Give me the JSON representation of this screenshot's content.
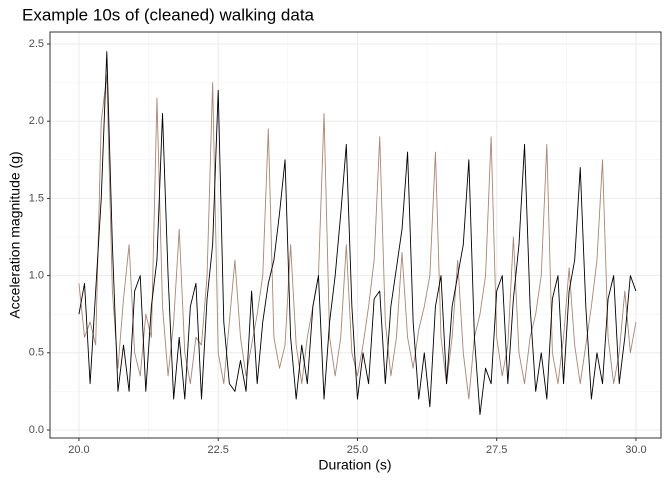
{
  "chart_data": {
    "type": "line",
    "title": "Example 10s of (cleaned) walking data",
    "x_label": "Duration (s)",
    "y_label": "Acceleration magnitude (g)",
    "x": [
      20.0,
      20.1,
      20.2,
      20.3,
      20.4,
      20.5,
      20.6,
      20.7,
      20.8,
      20.9,
      21.0,
      21.1,
      21.2,
      21.3,
      21.4,
      21.5,
      21.6,
      21.7,
      21.8,
      21.9,
      22.0,
      22.1,
      22.2,
      22.3,
      22.4,
      22.5,
      22.6,
      22.7,
      22.8,
      22.9,
      23.0,
      23.1,
      23.2,
      23.3,
      23.4,
      23.5,
      23.6,
      23.7,
      23.8,
      23.9,
      24.0,
      24.1,
      24.2,
      24.3,
      24.4,
      24.5,
      24.6,
      24.7,
      24.8,
      24.9,
      25.0,
      25.1,
      25.2,
      25.3,
      25.4,
      25.5,
      25.6,
      25.7,
      25.8,
      25.9,
      26.0,
      26.1,
      26.2,
      26.3,
      26.4,
      26.5,
      26.6,
      26.7,
      26.8,
      26.9,
      27.0,
      27.1,
      27.2,
      27.3,
      27.4,
      27.5,
      27.6,
      27.7,
      27.8,
      27.9,
      28.0,
      28.1,
      28.2,
      28.3,
      28.4,
      28.5,
      28.6,
      28.7,
      28.8,
      28.9,
      29.0,
      29.1,
      29.2,
      29.3,
      29.4,
      29.5,
      29.6,
      29.7,
      29.8,
      29.9,
      30.0
    ],
    "series": [
      {
        "color": "#a98676",
        "values": [
          0.95,
          0.6,
          0.7,
          0.55,
          2.0,
          2.3,
          0.9,
          0.4,
          0.85,
          1.2,
          0.5,
          0.35,
          0.75,
          0.6,
          2.15,
          0.8,
          0.35,
          0.7,
          1.3,
          0.5,
          0.3,
          0.6,
          0.55,
          1.0,
          2.25,
          0.5,
          0.3,
          0.7,
          1.1,
          0.6,
          0.35,
          0.55,
          0.75,
          1.0,
          1.95,
          0.6,
          0.4,
          0.55,
          1.2,
          0.55,
          0.3,
          0.6,
          0.8,
          1.0,
          2.05,
          0.6,
          0.35,
          0.6,
          1.2,
          0.5,
          0.35,
          0.55,
          0.8,
          1.1,
          1.9,
          0.7,
          0.35,
          0.6,
          1.15,
          0.6,
          0.4,
          0.65,
          0.8,
          1.0,
          1.8,
          0.6,
          0.3,
          0.6,
          1.1,
          0.5,
          0.2,
          0.6,
          0.75,
          1.0,
          1.9,
          0.6,
          0.35,
          0.55,
          1.25,
          0.5,
          0.3,
          0.6,
          0.75,
          1.0,
          1.85,
          0.5,
          0.3,
          0.6,
          1.05,
          0.55,
          0.3,
          0.55,
          0.8,
          1.1,
          1.75,
          0.6,
          0.3,
          0.5,
          0.9,
          0.5,
          0.7
        ]
      },
      {
        "color": "#000000",
        "values": [
          0.75,
          0.95,
          0.3,
          0.9,
          1.5,
          2.45,
          1.2,
          0.25,
          0.55,
          0.25,
          0.9,
          1.0,
          0.25,
          0.8,
          1.1,
          2.05,
          1.0,
          0.2,
          0.6,
          0.2,
          0.8,
          0.95,
          0.2,
          0.85,
          1.2,
          2.2,
          0.7,
          0.3,
          0.25,
          0.45,
          0.25,
          0.9,
          0.3,
          0.7,
          0.95,
          1.1,
          1.4,
          1.75,
          0.6,
          0.2,
          0.55,
          0.3,
          0.8,
          1.0,
          0.2,
          0.7,
          1.0,
          1.4,
          1.85,
          0.8,
          0.2,
          0.5,
          0.3,
          0.85,
          0.9,
          0.3,
          0.8,
          1.05,
          1.3,
          1.8,
          0.7,
          0.2,
          0.5,
          0.15,
          0.8,
          1.0,
          0.3,
          0.8,
          1.0,
          1.2,
          1.75,
          0.6,
          0.1,
          0.4,
          0.3,
          0.9,
          1.0,
          0.3,
          0.85,
          1.2,
          1.85,
          0.8,
          0.25,
          0.5,
          0.2,
          0.85,
          1.0,
          0.3,
          0.9,
          1.1,
          1.7,
          0.8,
          0.2,
          0.5,
          0.3,
          0.85,
          1.0,
          0.3,
          0.6,
          1.0,
          0.9
        ]
      }
    ],
    "xlim": [
      19.48,
      30.45
    ],
    "ylim": [
      -0.052,
      2.578
    ],
    "xticks": [
      {
        "value": 20,
        "label": "20.0"
      },
      {
        "value": 22.5,
        "label": "22.5"
      },
      {
        "value": 25,
        "label": "25.0"
      },
      {
        "value": 27.5,
        "label": "27.5"
      },
      {
        "value": 30,
        "label": "30.0"
      }
    ],
    "yticks": [
      {
        "value": 0,
        "label": "0.0"
      },
      {
        "value": 0.5,
        "label": "0.5"
      },
      {
        "value": 1,
        "label": "1.0"
      },
      {
        "value": 1.5,
        "label": "1.5"
      },
      {
        "value": 2,
        "label": "2.0"
      },
      {
        "value": 2.5,
        "label": "2.5"
      }
    ],
    "grid": true
  }
}
